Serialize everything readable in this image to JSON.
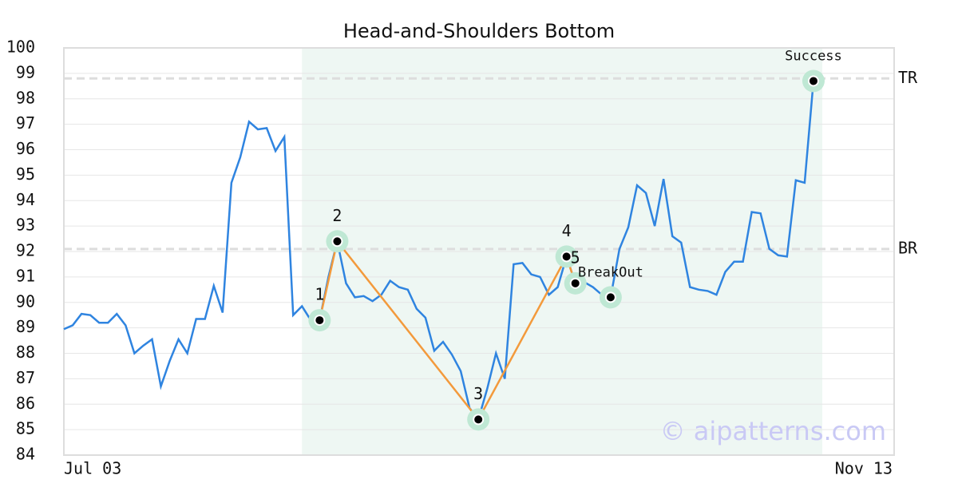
{
  "chart_data": {
    "type": "line",
    "title": "Head-and-Shoulders Bottom",
    "x_labels": {
      "left": "Jul 03",
      "right": "Nov 13"
    },
    "series": [
      {
        "name": "Price",
        "color": "#2f84e0",
        "values": [
          88.95,
          89.1,
          89.55,
          89.5,
          89.2,
          89.2,
          89.55,
          89.1,
          88.0,
          88.3,
          88.55,
          86.7,
          87.7,
          88.55,
          88.0,
          89.35,
          89.35,
          90.65,
          89.6,
          94.7,
          95.7,
          97.1,
          96.8,
          96.85,
          95.95,
          96.5,
          89.5,
          89.85,
          89.3,
          89.3,
          91.0,
          92.4,
          90.75,
          90.2,
          90.25,
          90.05,
          90.3,
          90.85,
          90.6,
          90.5,
          89.75,
          89.4,
          88.1,
          88.45,
          87.95,
          87.3,
          85.85,
          85.4,
          86.6,
          88.0,
          87.0,
          91.5,
          91.55,
          91.1,
          91.0,
          90.3,
          90.6,
          91.8,
          90.75,
          90.8,
          90.6,
          90.3,
          90.2,
          92.1,
          92.95,
          94.6,
          94.3,
          93.0,
          94.85,
          92.6,
          92.35,
          90.6,
          90.5,
          90.45,
          90.3,
          91.2,
          91.6,
          91.6,
          93.55,
          93.5,
          92.1,
          91.85,
          91.8,
          94.8,
          94.7,
          98.7,
          98.8
        ]
      }
    ],
    "ylim": [
      84,
      100
    ],
    "yticks": [
      84,
      85,
      86,
      87,
      88,
      89,
      90,
      91,
      92,
      93,
      94,
      95,
      96,
      97,
      98,
      99,
      100
    ],
    "grid": true,
    "highlight_range": [
      27,
      86
    ],
    "highlight_color": "#eef7f3",
    "pattern_color": "#f39a3c",
    "marker_ring_color": "#bfe8d4",
    "pattern_points": [
      {
        "label": "1",
        "index": 29
      },
      {
        "label": "2",
        "index": 31
      },
      {
        "label": "3",
        "index": 47
      },
      {
        "label": "4",
        "index": 57
      },
      {
        "label": "5",
        "index": 58
      }
    ],
    "extra_points": [
      {
        "label": "BreakOut",
        "index": 62
      },
      {
        "label": "Success",
        "index": 85
      }
    ],
    "levels": [
      {
        "label": "TR",
        "value": 98.8
      },
      {
        "label": "BR",
        "value": 92.1
      }
    ],
    "watermark": "© aipatterns.com"
  }
}
